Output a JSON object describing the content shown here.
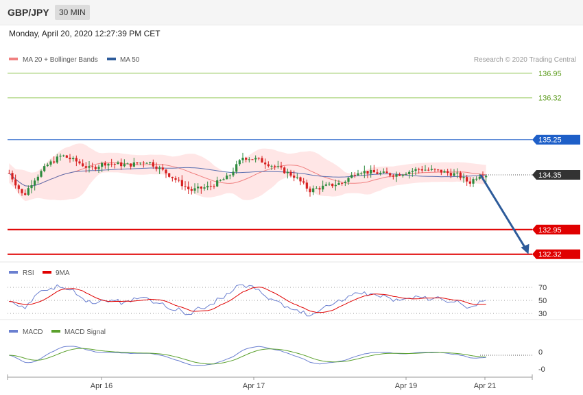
{
  "header": {
    "symbol": "GBP/JPY",
    "timeframe": "30 MIN",
    "datetime": "Monday, April 20, 2020 12:27:39 PM CET"
  },
  "legend": {
    "ma20": "MA 20 + Bollinger Bands",
    "ma50": "MA 50",
    "credit": "Research © 2020 Trading Central",
    "rsi": "RSI",
    "rsi_ma": "9MA",
    "macd": "MACD",
    "macd_signal": "MACD Signal"
  },
  "colors": {
    "candle_up": "#2e8b3e",
    "candle_down": "#d62020",
    "ma20": "#f08080",
    "band_fill": "#ffdede",
    "ma50": "#5a6fb0",
    "target_up": "#8bc34a",
    "pivot": "#1e5fc8",
    "support": "#e00000",
    "current": "#333333",
    "arrow": "#2d5b9a",
    "rsi": "#6a7fd0",
    "rsi_ma": "#e00000",
    "macd": "#6a7fd0",
    "macd_signal": "#5aa02c"
  },
  "chart_data": {
    "type": "candlestick",
    "x_ticks": [
      "Apr 16",
      "Apr 17",
      "Apr 19",
      "Apr 21"
    ],
    "price_levels": [
      {
        "value": 136.95,
        "label": "136.95",
        "kind": "target_up"
      },
      {
        "value": 136.32,
        "label": "136.32",
        "kind": "target_up"
      },
      {
        "value": 135.25,
        "label": "135.25",
        "kind": "pivot"
      },
      {
        "value": 134.35,
        "label": "134.35",
        "kind": "current"
      },
      {
        "value": 132.95,
        "label": "132.95",
        "kind": "support"
      },
      {
        "value": 132.32,
        "label": "132.32",
        "kind": "support"
      }
    ],
    "arrow": {
      "from": {
        "index": 0.985,
        "price": 134.35
      },
      "to": {
        "index": 1.085,
        "price": 132.32
      }
    },
    "price_anchors": [
      [
        0,
        134.4
      ],
      [
        0.03,
        133.8
      ],
      [
        0.05,
        134.2
      ],
      [
        0.08,
        134.6
      ],
      [
        0.11,
        134.85
      ],
      [
        0.14,
        134.7
      ],
      [
        0.17,
        134.5
      ],
      [
        0.2,
        134.65
      ],
      [
        0.25,
        134.6
      ],
      [
        0.29,
        134.7
      ],
      [
        0.33,
        134.4
      ],
      [
        0.38,
        133.95
      ],
      [
        0.42,
        134.05
      ],
      [
        0.46,
        134.3
      ],
      [
        0.49,
        134.8
      ],
      [
        0.52,
        134.75
      ],
      [
        0.56,
        134.55
      ],
      [
        0.6,
        134.3
      ],
      [
        0.63,
        133.95
      ],
      [
        0.66,
        134.05
      ],
      [
        0.7,
        134.15
      ],
      [
        0.73,
        134.45
      ],
      [
        0.77,
        134.4
      ],
      [
        0.81,
        134.35
      ],
      [
        0.86,
        134.5
      ],
      [
        0.9,
        134.45
      ],
      [
        0.94,
        134.35
      ],
      [
        0.965,
        134.15
      ],
      [
        0.985,
        134.35
      ]
    ],
    "rsi": {
      "levels": [
        70,
        50,
        30
      ]
    },
    "macd": {
      "levels": [
        "0",
        "-0"
      ]
    }
  }
}
